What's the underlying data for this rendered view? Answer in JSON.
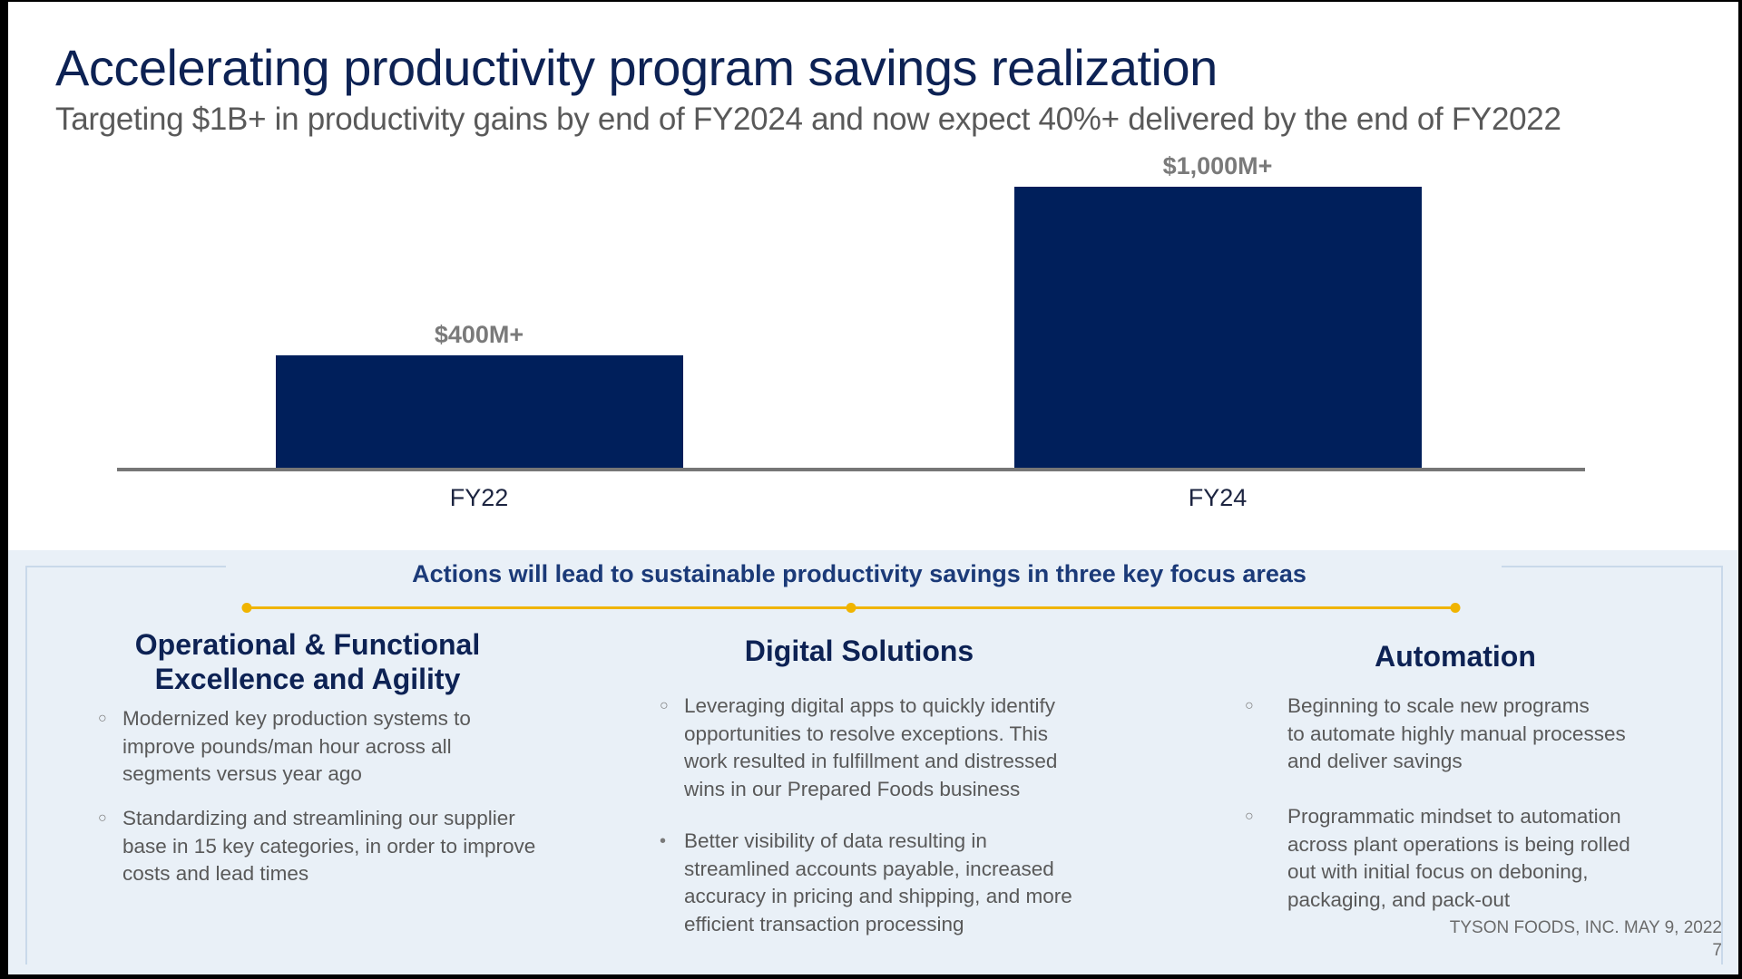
{
  "title": "Accelerating productivity program savings realization",
  "subtitle": "Targeting $1B+ in productivity gains by end of FY2024 and now expect 40%+ delivered by the end of FY2022",
  "chart_data": {
    "type": "bar",
    "categories": [
      "FY22",
      "FY24"
    ],
    "values": [
      400,
      1000
    ],
    "value_labels": [
      "$400M+",
      "$1,000M+"
    ],
    "unit": "$M",
    "ylim": [
      0,
      1000
    ],
    "grid": false,
    "bar_color": "#001f5b"
  },
  "panel": {
    "heading": "Actions will lead to sustainable productivity savings in three key focus areas",
    "accent_color": "#f0b400",
    "columns": [
      {
        "heading": [
          "Operational & Functional",
          "Excellence and Agility"
        ],
        "bullets": [
          {
            "marker": "○",
            "lines": [
              "Modernized key production systems to",
              "improve pounds/man hour across all",
              "segments versus year ago"
            ]
          },
          {
            "marker": "○",
            "lines": [
              "Standardizing and streamlining our supplier",
              "base in 15 key categories, in order to improve",
              "costs and lead times"
            ]
          }
        ]
      },
      {
        "heading": [
          "Digital Solutions"
        ],
        "bullets": [
          {
            "marker": "○",
            "lines": [
              "Leveraging digital apps to quickly identify",
              "opportunities to resolve exceptions. This",
              "work resulted in fulfillment and distressed",
              "wins in our Prepared Foods business"
            ]
          },
          {
            "marker": "•",
            "lines": [
              "Better visibility of data resulting in",
              "streamlined accounts payable, increased",
              "accuracy in pricing and shipping, and more",
              "efficient transaction processing"
            ]
          }
        ]
      },
      {
        "heading": [
          "Automation"
        ],
        "bullets": [
          {
            "marker": "○",
            "lines": [
              "Beginning to scale new programs",
              "to automate highly manual processes",
              "and deliver savings"
            ]
          },
          {
            "marker": "○",
            "lines": [
              "Programmatic mindset to automation",
              "across plant operations is being rolled",
              "out with initial focus on deboning,",
              "packaging, and pack-out"
            ]
          }
        ]
      }
    ]
  },
  "footer": "TYSON FOODS, INC. MAY 9, 2022",
  "page_number": "7"
}
